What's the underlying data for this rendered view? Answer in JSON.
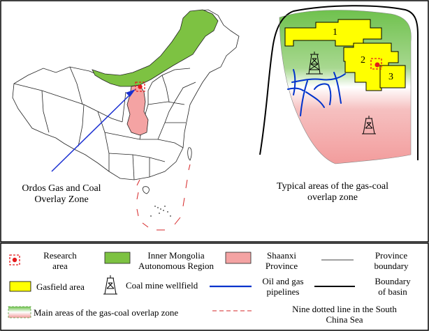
{
  "left_panel": {
    "caption_line1": "Ordos Gas and Coal",
    "caption_line2": "Overlay Zone"
  },
  "right_panel": {
    "caption_line1": "Typical areas of the gas-coal",
    "caption_line2": "overlap zone",
    "gasfield_labels": [
      "1",
      "2",
      "3"
    ]
  },
  "legend": {
    "research_area": {
      "line1": "Research",
      "line2": "area"
    },
    "inner_mongolia": {
      "line1": "Inner Mongolia",
      "line2": "Autonomous Region"
    },
    "shaanxi": {
      "line1": "Shaanxi",
      "line2": "Province"
    },
    "province_boundary": {
      "line1": "Province",
      "line2": "boundary"
    },
    "gasfield": "Gasfield area",
    "coal_mine": "Coal mine wellfield",
    "pipelines": {
      "line1": "Oil and gas",
      "line2": "pipelines"
    },
    "basin_boundary": {
      "line1": "Boundary",
      "line2": "of basin"
    },
    "overlap_zone": "Main areas of the gas-coal overlap zone",
    "nine_dotted": {
      "line1": "Nine dotted line in the South",
      "line2": "China Sea"
    }
  },
  "colors": {
    "inner_mongolia": "#7dc242",
    "shaanxi": "#f4a3a3",
    "gasfield": "#ffff00",
    "pipeline": "#0033cc",
    "research": "#e41a1c",
    "arrow": "#1a2fd1"
  }
}
